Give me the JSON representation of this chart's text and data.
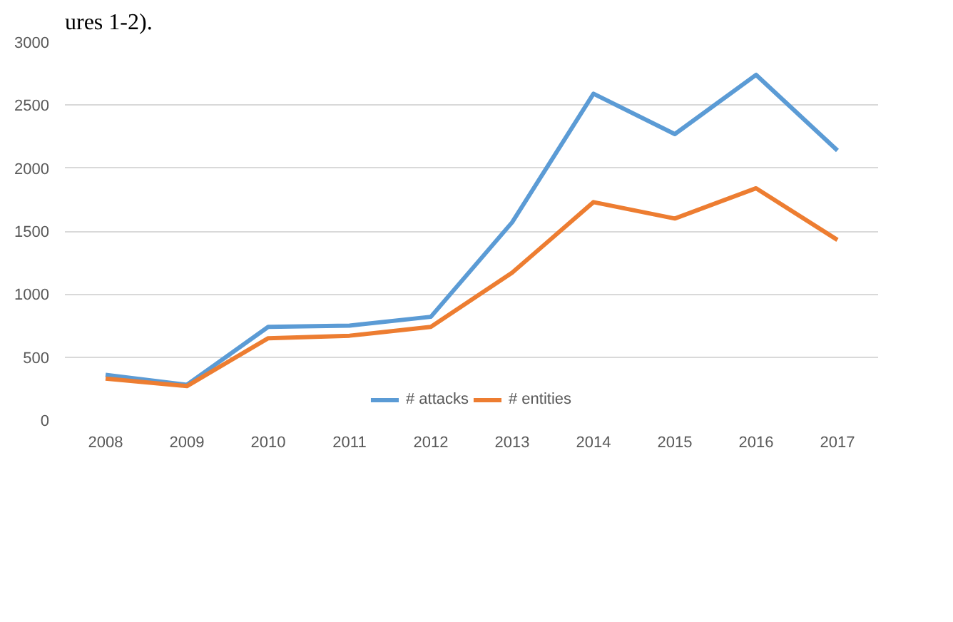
{
  "chart_data": {
    "type": "line",
    "categories": [
      "2008",
      "2009",
      "2010",
      "2011",
      "2012",
      "2013",
      "2014",
      "2015",
      "2016",
      "2017"
    ],
    "series": [
      {
        "name": "# attacks",
        "color": "#5b9bd5",
        "values": [
          360,
          280,
          740,
          750,
          820,
          1570,
          2590,
          2270,
          2740,
          2140
        ]
      },
      {
        "name": "# entities",
        "color": "#ed7d31",
        "values": [
          330,
          270,
          650,
          670,
          740,
          1170,
          1730,
          1600,
          1840,
          1430
        ]
      }
    ],
    "ylim": [
      0,
      3000
    ],
    "yticks": [
      0,
      500,
      1000,
      1500,
      2000,
      2500,
      3000
    ],
    "grid": "y",
    "legend": "bottom",
    "line_style": "solid",
    "annotations": [
      "ures 1-2)."
    ]
  }
}
